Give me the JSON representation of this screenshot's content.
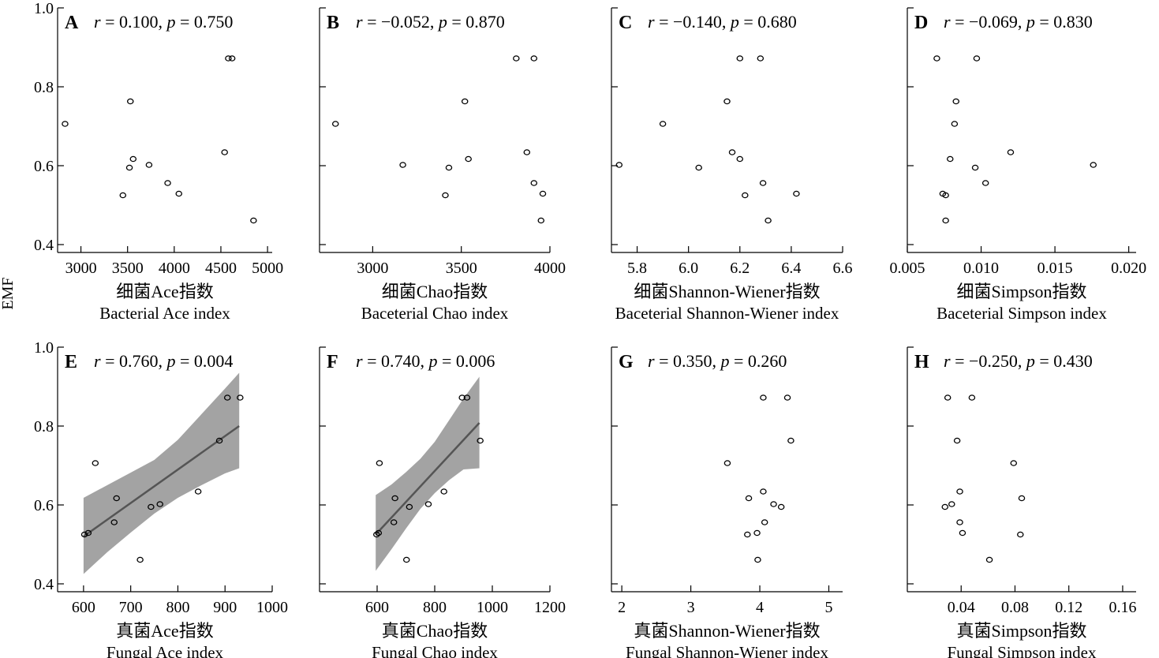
{
  "y_axis_label": "EMF",
  "chart_data": [
    {
      "panel": "A",
      "type": "scatter",
      "stat": {
        "r": "0.100",
        "p": "0.750"
      },
      "xlabel_cn": "细菌Ace指数",
      "xlabel_en": "Bacterial Ace index",
      "xlim": [
        2750,
        5050
      ],
      "xticks": [
        3000,
        3500,
        4000,
        4500,
        5000
      ],
      "xtick_labels": [
        "3000",
        "3500",
        "4000",
        "4500",
        "5000"
      ],
      "ylim": [
        0.38,
        1.0
      ],
      "yticks": [
        0.4,
        0.6,
        0.8,
        1.0
      ],
      "ytick_labels": [
        "0.4",
        "0.6",
        "0.8",
        "1.0"
      ],
      "fit": null,
      "points": [
        [
          2830,
          0.706
        ],
        [
          3530,
          0.763
        ],
        [
          3450,
          0.525
        ],
        [
          3520,
          0.595
        ],
        [
          3560,
          0.617
        ],
        [
          3730,
          0.602
        ],
        [
          3930,
          0.556
        ],
        [
          4050,
          0.529
        ],
        [
          4540,
          0.634
        ],
        [
          4580,
          0.872
        ],
        [
          4620,
          0.872
        ],
        [
          4850,
          0.461
        ]
      ]
    },
    {
      "panel": "B",
      "type": "scatter",
      "stat": {
        "r": "−0.052",
        "p": "0.870"
      },
      "xlabel_cn": "细菌Chao指数",
      "xlabel_en": "Baceterial  Chao index",
      "xlim": [
        2700,
        4000
      ],
      "xticks": [
        3000,
        3500,
        4000
      ],
      "xtick_labels": [
        "3000",
        "3500",
        "4000"
      ],
      "ylim": [
        0.38,
        1.0
      ],
      "yticks": [
        0.4,
        0.6,
        0.8,
        1.0
      ],
      "ytick_labels": [
        "",
        "",
        "",
        ""
      ],
      "fit": null,
      "points": [
        [
          2790,
          0.706
        ],
        [
          3170,
          0.602
        ],
        [
          3410,
          0.525
        ],
        [
          3430,
          0.595
        ],
        [
          3520,
          0.763
        ],
        [
          3540,
          0.617
        ],
        [
          3810,
          0.872
        ],
        [
          3870,
          0.634
        ],
        [
          3910,
          0.556
        ],
        [
          3910,
          0.872
        ],
        [
          3950,
          0.461
        ],
        [
          3960,
          0.529
        ]
      ]
    },
    {
      "panel": "C",
      "type": "scatter",
      "stat": {
        "r": "−0.140",
        "p": "0.680"
      },
      "xlabel_cn": "细菌Shannon-Wiener指数",
      "xlabel_en": "Baceterial Shannon-Wiener index",
      "xlim": [
        5.7,
        6.6
      ],
      "xticks": [
        5.8,
        6.0,
        6.2,
        6.4,
        6.6
      ],
      "xtick_labels": [
        "5.8",
        "6.0",
        "6.2",
        "6.4",
        "6.6"
      ],
      "ylim": [
        0.38,
        1.0
      ],
      "yticks": [
        0.4,
        0.6,
        0.8,
        1.0
      ],
      "ytick_labels": [
        "",
        "",
        "",
        ""
      ],
      "fit": null,
      "points": [
        [
          5.73,
          0.602
        ],
        [
          5.9,
          0.706
        ],
        [
          6.04,
          0.595
        ],
        [
          6.15,
          0.763
        ],
        [
          6.17,
          0.634
        ],
        [
          6.2,
          0.617
        ],
        [
          6.2,
          0.872
        ],
        [
          6.22,
          0.525
        ],
        [
          6.28,
          0.872
        ],
        [
          6.29,
          0.556
        ],
        [
          6.31,
          0.461
        ],
        [
          6.42,
          0.529
        ]
      ]
    },
    {
      "panel": "D",
      "type": "scatter",
      "stat": {
        "r": "−0.069",
        "p": "0.830"
      },
      "xlabel_cn": "细菌Simpson指数",
      "xlabel_en": "Baceterial Simpson index",
      "xlim": [
        0.005,
        0.0205
      ],
      "xticks": [
        0.005,
        0.01,
        0.015,
        0.02
      ],
      "xtick_labels": [
        "0.005",
        "0.010",
        "0.015",
        "0.020"
      ],
      "ylim": [
        0.38,
        1.0
      ],
      "yticks": [
        0.4,
        0.6,
        0.8,
        1.0
      ],
      "ytick_labels": [
        "",
        "",
        "",
        ""
      ],
      "fit": null,
      "points": [
        [
          0.007,
          0.872
        ],
        [
          0.0097,
          0.872
        ],
        [
          0.0083,
          0.763
        ],
        [
          0.0082,
          0.706
        ],
        [
          0.012,
          0.634
        ],
        [
          0.0079,
          0.617
        ],
        [
          0.0096,
          0.595
        ],
        [
          0.0176,
          0.602
        ],
        [
          0.0103,
          0.556
        ],
        [
          0.0074,
          0.529
        ],
        [
          0.0076,
          0.525
        ],
        [
          0.0076,
          0.461
        ]
      ]
    },
    {
      "panel": "E",
      "type": "scatter",
      "stat": {
        "r": "0.760",
        "p": "0.004"
      },
      "xlabel_cn": "真菌Ace指数",
      "xlabel_en": "Fungal Ace index",
      "xlim": [
        545,
        1000
      ],
      "xticks": [
        600,
        700,
        800,
        900,
        1000
      ],
      "xtick_labels": [
        "600",
        "700",
        "800",
        "900",
        "1000"
      ],
      "ylim": [
        0.38,
        1.0
      ],
      "yticks": [
        0.4,
        0.6,
        0.8,
        1.0
      ],
      "ytick_labels": [
        "0.4",
        "0.6",
        "0.8",
        "1.0"
      ],
      "fit": {
        "line": [
          [
            600,
            0.52
          ],
          [
            930,
            0.8
          ]
        ],
        "band_upper": [
          [
            600,
            0.618
          ],
          [
            650,
            0.65
          ],
          [
            700,
            0.682
          ],
          [
            750,
            0.714
          ],
          [
            800,
            0.765
          ],
          [
            850,
            0.83
          ],
          [
            900,
            0.895
          ],
          [
            930,
            0.935
          ]
        ],
        "band_lower": [
          [
            600,
            0.425
          ],
          [
            650,
            0.48
          ],
          [
            700,
            0.53
          ],
          [
            750,
            0.578
          ],
          [
            800,
            0.618
          ],
          [
            850,
            0.65
          ],
          [
            900,
            0.68
          ],
          [
            930,
            0.693
          ]
        ]
      },
      "points": [
        [
          602,
          0.525
        ],
        [
          610,
          0.529
        ],
        [
          625,
          0.706
        ],
        [
          665,
          0.556
        ],
        [
          670,
          0.617
        ],
        [
          720,
          0.461
        ],
        [
          743,
          0.595
        ],
        [
          762,
          0.602
        ],
        [
          843,
          0.634
        ],
        [
          888,
          0.763
        ],
        [
          905,
          0.872
        ],
        [
          932,
          0.872
        ]
      ]
    },
    {
      "panel": "F",
      "type": "scatter",
      "stat": {
        "r": "0.740",
        "p": "0.006"
      },
      "xlabel_cn": "真菌Chao指数",
      "xlabel_en": "Fungal Chao index",
      "xlim": [
        400,
        1200
      ],
      "xticks": [
        600,
        800,
        1000,
        1200
      ],
      "xtick_labels": [
        "600",
        "800",
        "1000",
        "1200"
      ],
      "ylim": [
        0.38,
        1.0
      ],
      "yticks": [
        0.4,
        0.6,
        0.8,
        1.0
      ],
      "ytick_labels": [
        "",
        "",
        "",
        ""
      ],
      "fit": {
        "line": [
          [
            595,
            0.525
          ],
          [
            955,
            0.808
          ]
        ],
        "band_upper": [
          [
            595,
            0.625
          ],
          [
            650,
            0.652
          ],
          [
            700,
            0.683
          ],
          [
            750,
            0.717
          ],
          [
            800,
            0.76
          ],
          [
            850,
            0.815
          ],
          [
            900,
            0.87
          ],
          [
            955,
            0.925
          ]
        ],
        "band_lower": [
          [
            595,
            0.433
          ],
          [
            650,
            0.488
          ],
          [
            700,
            0.54
          ],
          [
            750,
            0.59
          ],
          [
            800,
            0.63
          ],
          [
            850,
            0.663
          ],
          [
            900,
            0.69
          ],
          [
            955,
            0.693
          ]
        ]
      },
      "points": [
        [
          598,
          0.525
        ],
        [
          605,
          0.529
        ],
        [
          608,
          0.706
        ],
        [
          658,
          0.556
        ],
        [
          662,
          0.617
        ],
        [
          702,
          0.461
        ],
        [
          712,
          0.595
        ],
        [
          778,
          0.602
        ],
        [
          832,
          0.634
        ],
        [
          895,
          0.872
        ],
        [
          912,
          0.872
        ],
        [
          958,
          0.763
        ]
      ]
    },
    {
      "panel": "G",
      "type": "scatter",
      "stat": {
        "r": "0.350",
        "p": "0.260"
      },
      "xlabel_cn": "真菌Shannon-Wiener指数",
      "xlabel_en": "Fungal Shannon-Wiener index",
      "xlim": [
        1.85,
        5.2
      ],
      "xticks": [
        2,
        3,
        4,
        5
      ],
      "xtick_labels": [
        "2",
        "3",
        "4",
        "5"
      ],
      "ylim": [
        0.38,
        1.0
      ],
      "yticks": [
        0.4,
        0.6,
        0.8,
        1.0
      ],
      "ytick_labels": [
        "",
        "",
        "",
        ""
      ],
      "fit": null,
      "points": [
        [
          3.53,
          0.706
        ],
        [
          3.82,
          0.525
        ],
        [
          3.84,
          0.617
        ],
        [
          3.96,
          0.529
        ],
        [
          3.97,
          0.461
        ],
        [
          4.05,
          0.872
        ],
        [
          4.05,
          0.634
        ],
        [
          4.07,
          0.556
        ],
        [
          4.2,
          0.602
        ],
        [
          4.31,
          0.595
        ],
        [
          4.4,
          0.872
        ],
        [
          4.45,
          0.763
        ]
      ]
    },
    {
      "panel": "H",
      "type": "scatter",
      "stat": {
        "r": "−0.250",
        "p": "0.430"
      },
      "xlabel_cn": "真菌Simpson指数",
      "xlabel_en": "Fungal Simpson index",
      "xlim": [
        0.0,
        0.17
      ],
      "xticks": [
        0.04,
        0.08,
        0.12,
        0.16
      ],
      "xtick_labels": [
        "0.04",
        "0.08",
        "0.12",
        "0.16"
      ],
      "ylim": [
        0.38,
        1.0
      ],
      "yticks": [
        0.4,
        0.6,
        0.8,
        1.0
      ],
      "ytick_labels": [
        "",
        "",
        "",
        ""
      ],
      "fit": null,
      "points": [
        [
          0.03,
          0.872
        ],
        [
          0.048,
          0.872
        ],
        [
          0.037,
          0.763
        ],
        [
          0.079,
          0.706
        ],
        [
          0.039,
          0.634
        ],
        [
          0.085,
          0.617
        ],
        [
          0.033,
          0.602
        ],
        [
          0.028,
          0.595
        ],
        [
          0.039,
          0.556
        ],
        [
          0.041,
          0.529
        ],
        [
          0.084,
          0.525
        ],
        [
          0.061,
          0.461
        ]
      ]
    }
  ]
}
